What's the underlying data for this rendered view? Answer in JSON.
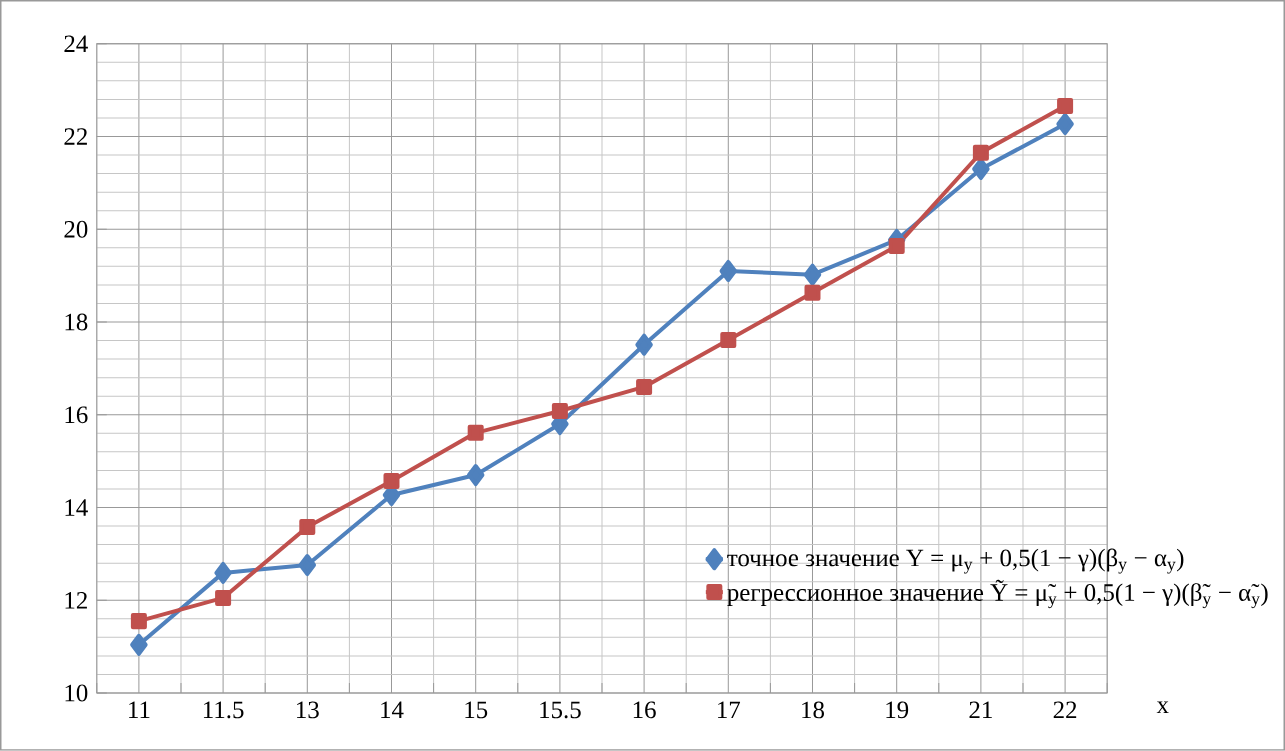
{
  "chart_data": {
    "type": "line",
    "xlabel": "x",
    "categories": [
      "11",
      "11.5",
      "13",
      "14",
      "15",
      "15.5",
      "16",
      "17",
      "18",
      "19",
      "21",
      "22"
    ],
    "series": [
      {
        "name": "точное значение     Y = μ$_{y}$ + 0,5(1 − γ)(β$_{y}$ − α$_{y}$)",
        "color": "#4f81bd",
        "marker": "diamond",
        "values": [
          11.04,
          12.59,
          12.76,
          14.27,
          14.7,
          15.8,
          17.51,
          19.1,
          19.02,
          19.77,
          21.3,
          22.27
        ]
      },
      {
        "name": "регрессионное значение   Ỹ = μ̃$_{y}$ + 0,5(1 − γ)(β̃$_{y}$ − α̃$_{y}$)",
        "color": "#c0504d",
        "marker": "square",
        "values": [
          11.55,
          12.05,
          13.58,
          14.57,
          15.61,
          16.08,
          16.6,
          17.61,
          18.63,
          19.64,
          21.65,
          22.66
        ]
      }
    ],
    "ylim": [
      10,
      24
    ],
    "yticks": [
      10,
      12,
      14,
      16,
      18,
      20,
      22,
      24
    ],
    "grid": true,
    "legend": "bottom right",
    "line_style": "solid"
  }
}
